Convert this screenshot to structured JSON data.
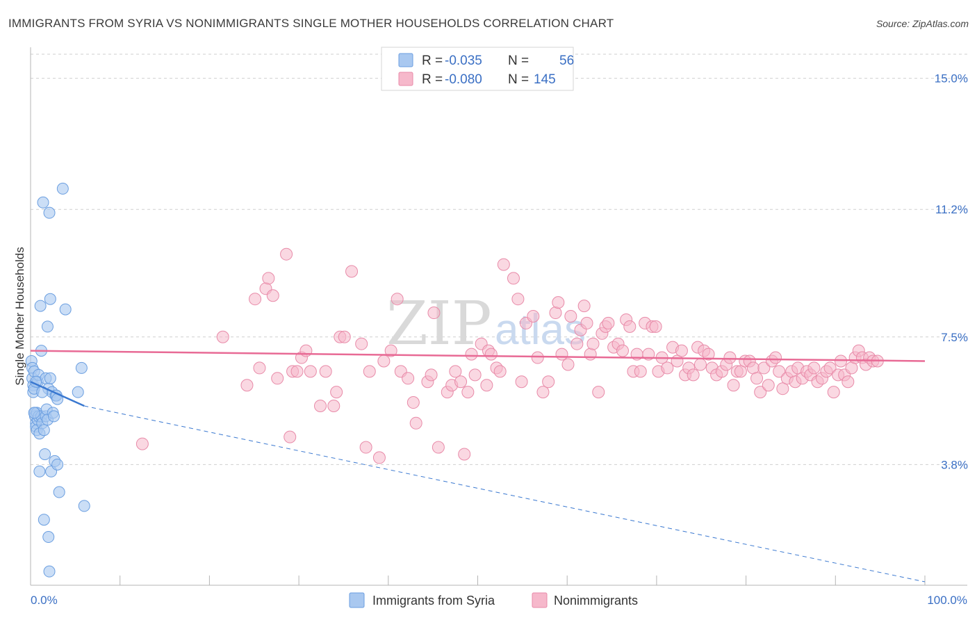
{
  "title": "IMMIGRANTS FROM SYRIA VS NONIMMIGRANTS SINGLE MOTHER HOUSEHOLDS CORRELATION CHART",
  "source": "Source: ZipAtlas.com",
  "watermark": {
    "zip": "ZIP",
    "atlas": "atlas"
  },
  "colors": {
    "blue_fill": "#a9c8f0",
    "blue_stroke": "#6a9ee0",
    "blue_line": "#3a78d0",
    "pink_fill": "#f6b8cb",
    "pink_stroke": "#e88aa8",
    "pink_line": "#e86a95",
    "grid": "#cfcfcf",
    "axis_text": "#3a6fc4"
  },
  "legend": {
    "rows": [
      {
        "r_label": "R =",
        "r_value": "-0.035",
        "n_label": "N =",
        "n_value": "56"
      },
      {
        "r_label": "R =",
        "r_value": "-0.080",
        "n_label": "N =",
        "n_value": "145"
      }
    ]
  },
  "bottom_legend": {
    "items": [
      {
        "label": "Immigrants from Syria"
      },
      {
        "label": "Nonimmigrants"
      }
    ]
  },
  "chart_data": {
    "type": "scatter",
    "title": "IMMIGRANTS FROM SYRIA VS NONIMMIGRANTS SINGLE MOTHER HOUSEHOLDS CORRELATION CHART",
    "xlabel": "",
    "ylabel": "Single Mother Households",
    "xlim": [
      0,
      100
    ],
    "ylim": [
      0.3,
      15.9
    ],
    "x_tick_labels": [
      "0.0%",
      "100.0%"
    ],
    "y_ticks": [
      3.8,
      7.5,
      11.2,
      15.0
    ],
    "y_tick_labels": [
      "3.8%",
      "7.5%",
      "11.2%",
      "15.0%"
    ],
    "grid": true,
    "legend_position": "top-center",
    "series": [
      {
        "name": "Immigrants from Syria",
        "color": "#a9c8f0",
        "points": [
          [
            0.1,
            6.8
          ],
          [
            0.2,
            6.6
          ],
          [
            0.2,
            6.3
          ],
          [
            0.3,
            6.1
          ],
          [
            0.3,
            5.9
          ],
          [
            0.4,
            6.5
          ],
          [
            0.4,
            6.0
          ],
          [
            0.5,
            5.3
          ],
          [
            0.5,
            5.2
          ],
          [
            0.6,
            5.0
          ],
          [
            0.6,
            4.9
          ],
          [
            0.7,
            4.8
          ],
          [
            0.7,
            5.3
          ],
          [
            0.8,
            5.1
          ],
          [
            0.8,
            6.2
          ],
          [
            0.9,
            6.4
          ],
          [
            0.9,
            5.2
          ],
          [
            1.0,
            4.7
          ],
          [
            1.0,
            3.6
          ],
          [
            1.1,
            8.4
          ],
          [
            1.2,
            7.1
          ],
          [
            1.2,
            5.2
          ],
          [
            1.3,
            5.0
          ],
          [
            1.4,
            11.4
          ],
          [
            1.5,
            4.8
          ],
          [
            1.5,
            2.2
          ],
          [
            1.6,
            4.1
          ],
          [
            1.7,
            6.3
          ],
          [
            1.7,
            5.2
          ],
          [
            1.8,
            5.4
          ],
          [
            1.9,
            7.8
          ],
          [
            1.9,
            5.1
          ],
          [
            2.0,
            6.0
          ],
          [
            2.0,
            1.7
          ],
          [
            2.1,
            0.7
          ],
          [
            2.1,
            11.1
          ],
          [
            2.2,
            6.3
          ],
          [
            2.2,
            8.6
          ],
          [
            2.3,
            3.6
          ],
          [
            2.4,
            5.9
          ],
          [
            2.5,
            5.3
          ],
          [
            2.6,
            5.2
          ],
          [
            2.7,
            3.9
          ],
          [
            2.8,
            5.8
          ],
          [
            2.9,
            5.8
          ],
          [
            3.0,
            5.7
          ],
          [
            3.0,
            3.8
          ],
          [
            3.2,
            3.0
          ],
          [
            3.6,
            11.8
          ],
          [
            3.9,
            8.3
          ],
          [
            5.3,
            5.9
          ],
          [
            5.7,
            6.6
          ],
          [
            6.0,
            2.6
          ],
          [
            1.3,
            5.9
          ],
          [
            0.4,
            5.3
          ],
          [
            0.6,
            6.2
          ]
        ]
      },
      {
        "name": "Nonimmigrants",
        "color": "#f6b8cb",
        "points": [
          [
            12.5,
            4.4
          ],
          [
            21.5,
            7.5
          ],
          [
            24.2,
            6.1
          ],
          [
            25.1,
            8.6
          ],
          [
            25.6,
            6.6
          ],
          [
            26.3,
            8.9
          ],
          [
            26.6,
            9.2
          ],
          [
            27.1,
            8.7
          ],
          [
            27.6,
            6.3
          ],
          [
            28.6,
            9.9
          ],
          [
            29.0,
            4.6
          ],
          [
            29.3,
            6.5
          ],
          [
            29.8,
            6.5
          ],
          [
            30.3,
            6.9
          ],
          [
            30.8,
            7.1
          ],
          [
            31.3,
            6.5
          ],
          [
            32.4,
            5.5
          ],
          [
            33.0,
            6.5
          ],
          [
            33.9,
            5.5
          ],
          [
            34.2,
            5.9
          ],
          [
            34.6,
            7.5
          ],
          [
            35.1,
            7.5
          ],
          [
            35.9,
            9.4
          ],
          [
            37.0,
            7.3
          ],
          [
            37.5,
            4.3
          ],
          [
            37.9,
            6.5
          ],
          [
            39.0,
            4.0
          ],
          [
            39.5,
            6.8
          ],
          [
            40.3,
            7.1
          ],
          [
            41.0,
            8.6
          ],
          [
            41.4,
            6.5
          ],
          [
            42.2,
            6.3
          ],
          [
            42.8,
            5.6
          ],
          [
            43.1,
            5.0
          ],
          [
            44.4,
            6.2
          ],
          [
            44.8,
            6.4
          ],
          [
            45.1,
            8.2
          ],
          [
            45.6,
            4.3
          ],
          [
            46.6,
            5.9
          ],
          [
            47.1,
            6.1
          ],
          [
            47.5,
            6.5
          ],
          [
            48.1,
            6.2
          ],
          [
            48.5,
            4.1
          ],
          [
            48.9,
            5.9
          ],
          [
            49.3,
            7.0
          ],
          [
            49.7,
            6.4
          ],
          [
            50.4,
            7.3
          ],
          [
            51.0,
            6.1
          ],
          [
            51.2,
            7.1
          ],
          [
            51.5,
            7.0
          ],
          [
            52.1,
            6.6
          ],
          [
            52.5,
            6.5
          ],
          [
            52.9,
            9.6
          ],
          [
            54.0,
            9.2
          ],
          [
            54.5,
            8.6
          ],
          [
            54.9,
            6.2
          ],
          [
            55.4,
            7.9
          ],
          [
            56.2,
            8.1
          ],
          [
            56.7,
            6.9
          ],
          [
            57.3,
            5.9
          ],
          [
            57.9,
            6.2
          ],
          [
            58.7,
            8.2
          ],
          [
            59.0,
            8.5
          ],
          [
            59.4,
            7.0
          ],
          [
            60.1,
            6.7
          ],
          [
            60.4,
            8.1
          ],
          [
            61.1,
            7.3
          ],
          [
            61.5,
            7.7
          ],
          [
            61.9,
            8.4
          ],
          [
            62.2,
            7.9
          ],
          [
            62.6,
            7.0
          ],
          [
            62.9,
            7.3
          ],
          [
            63.5,
            5.9
          ],
          [
            63.9,
            7.6
          ],
          [
            64.3,
            7.8
          ],
          [
            64.6,
            7.9
          ],
          [
            65.2,
            7.2
          ],
          [
            65.7,
            7.3
          ],
          [
            66.2,
            7.1
          ],
          [
            66.6,
            8.0
          ],
          [
            67.0,
            7.8
          ],
          [
            67.4,
            6.5
          ],
          [
            67.8,
            7.0
          ],
          [
            68.2,
            6.5
          ],
          [
            68.7,
            7.9
          ],
          [
            69.1,
            7.0
          ],
          [
            69.5,
            7.8
          ],
          [
            69.9,
            7.8
          ],
          [
            70.2,
            6.5
          ],
          [
            70.6,
            6.9
          ],
          [
            71.2,
            6.6
          ],
          [
            71.8,
            7.2
          ],
          [
            72.3,
            6.8
          ],
          [
            72.8,
            7.1
          ],
          [
            73.2,
            6.4
          ],
          [
            73.6,
            6.6
          ],
          [
            74.1,
            6.4
          ],
          [
            74.6,
            7.2
          ],
          [
            74.9,
            6.7
          ],
          [
            75.3,
            7.1
          ],
          [
            75.8,
            7.0
          ],
          [
            76.2,
            6.6
          ],
          [
            76.7,
            6.4
          ],
          [
            77.3,
            6.5
          ],
          [
            77.8,
            6.7
          ],
          [
            78.2,
            6.9
          ],
          [
            78.6,
            6.1
          ],
          [
            79.0,
            6.5
          ],
          [
            79.4,
            6.5
          ],
          [
            79.9,
            6.8
          ],
          [
            80.4,
            6.8
          ],
          [
            80.8,
            6.6
          ],
          [
            81.2,
            6.3
          ],
          [
            81.6,
            5.9
          ],
          [
            82.0,
            6.6
          ],
          [
            82.5,
            6.1
          ],
          [
            82.9,
            6.8
          ],
          [
            83.3,
            6.9
          ],
          [
            83.7,
            6.5
          ],
          [
            84.1,
            6.0
          ],
          [
            84.6,
            6.3
          ],
          [
            85.1,
            6.5
          ],
          [
            85.5,
            6.2
          ],
          [
            85.8,
            6.6
          ],
          [
            86.3,
            6.3
          ],
          [
            86.8,
            6.5
          ],
          [
            87.2,
            6.4
          ],
          [
            87.6,
            6.6
          ],
          [
            88.0,
            6.2
          ],
          [
            88.5,
            6.3
          ],
          [
            89.0,
            6.5
          ],
          [
            89.4,
            6.6
          ],
          [
            89.8,
            5.9
          ],
          [
            90.3,
            6.4
          ],
          [
            90.6,
            6.8
          ],
          [
            91.0,
            6.4
          ],
          [
            91.4,
            6.2
          ],
          [
            91.8,
            6.6
          ],
          [
            92.2,
            6.9
          ],
          [
            92.6,
            7.1
          ],
          [
            93.0,
            6.9
          ],
          [
            93.4,
            6.7
          ],
          [
            93.8,
            6.9
          ],
          [
            94.2,
            6.8
          ],
          [
            94.7,
            6.8
          ]
        ]
      }
    ],
    "trend_lines": [
      {
        "series": "Immigrants from Syria",
        "x": [
          0,
          6
        ],
        "y": [
          6.2,
          5.5
        ],
        "extended_x": [
          6,
          100
        ],
        "extended_y": [
          5.5,
          0.4
        ]
      },
      {
        "series": "Nonimmigrants",
        "x": [
          0,
          100
        ],
        "y": [
          7.1,
          6.8
        ]
      }
    ]
  }
}
